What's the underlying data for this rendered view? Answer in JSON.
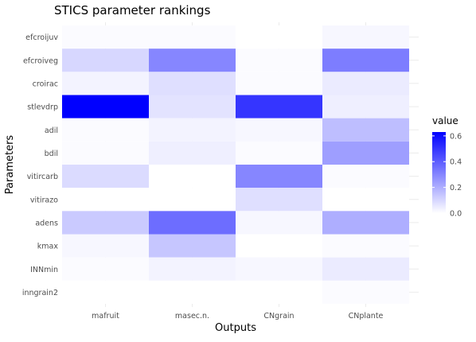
{
  "chart_data": {
    "type": "heatmap",
    "title": "STICS parameter rankings",
    "xlabel": "Outputs",
    "ylabel": "Parameters",
    "x_categories": [
      "mafruit",
      "masec.n.",
      "CNgrain",
      "CNplante"
    ],
    "y_categories": [
      "efcroijuv",
      "efcroiveg",
      "croirac",
      "stlevdrp",
      "adil",
      "bdil",
      "vitircarb",
      "vitirazo",
      "adens",
      "kmax",
      "INNmin",
      "inngrain2"
    ],
    "values": [
      [
        0.01,
        0.01,
        0.0,
        0.02
      ],
      [
        0.1,
        0.3,
        0.01,
        0.32
      ],
      [
        0.03,
        0.08,
        0.01,
        0.05
      ],
      [
        0.63,
        0.07,
        0.5,
        0.04
      ],
      [
        0.01,
        0.03,
        0.02,
        0.16
      ],
      [
        0.01,
        0.04,
        0.01,
        0.24
      ],
      [
        0.09,
        0.0,
        0.3,
        0.01
      ],
      [
        0.0,
        0.0,
        0.08,
        0.0
      ],
      [
        0.13,
        0.36,
        0.02,
        0.2
      ],
      [
        0.02,
        0.14,
        0.0,
        0.01
      ],
      [
        0.01,
        0.03,
        0.02,
        0.05
      ],
      [
        0.0,
        0.0,
        0.0,
        0.01
      ]
    ],
    "legend": {
      "title": "value",
      "ticks": [
        "0.0",
        "0.2",
        "0.4",
        "0.6"
      ],
      "min": 0,
      "max": 0.63,
      "low_color": "#ffffff",
      "high_color": "#0000ff",
      "position": "right"
    },
    "grid": true
  }
}
